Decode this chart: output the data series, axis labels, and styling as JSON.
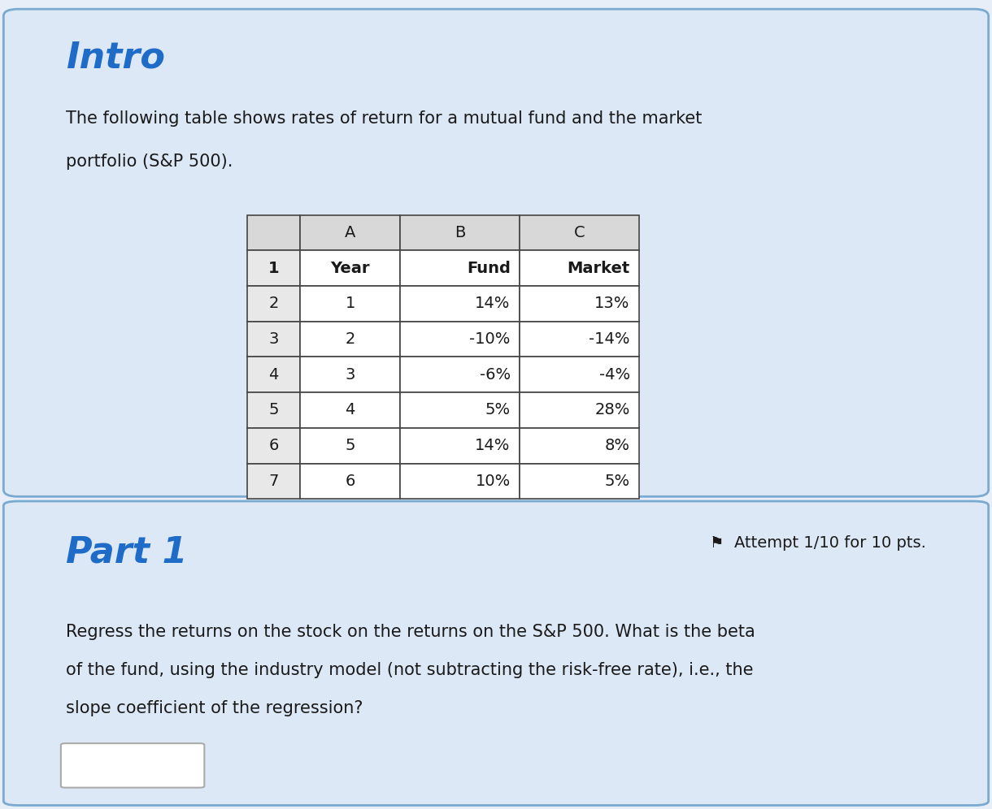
{
  "title": "Intro",
  "title_color": "#1e6cc8",
  "intro_text_line1": "The following table shows rates of return for a mutual fund and the market",
  "intro_text_line2": "portfolio (S&P 500).",
  "table_col_headers": [
    "",
    "A",
    "B",
    "C"
  ],
  "table_row_labels": [
    "1",
    "2",
    "3",
    "4",
    "5",
    "6",
    "7"
  ],
  "table_data": [
    [
      "Year",
      "Fund",
      "Market"
    ],
    [
      "1",
      "14%",
      "13%"
    ],
    [
      "2",
      "-10%",
      "-14%"
    ],
    [
      "3",
      "-6%",
      "-4%"
    ],
    [
      "4",
      "5%",
      "28%"
    ],
    [
      "5",
      "14%",
      "8%"
    ],
    [
      "6",
      "10%",
      "5%"
    ]
  ],
  "part1_title": "Part 1",
  "part1_title_color": "#1e6cc8",
  "attempt_text": "⚑  Attempt 1/10 for 10 pts.",
  "part1_text_line1": "Regress the returns on the stock on the returns on the S&P 500. What is the beta",
  "part1_text_line2": "of the fund, using the industry model (not subtracting the risk-free rate), i.e., the",
  "part1_text_line3": "slope coefficient of the regression?",
  "bg_outer": "#e8eef8",
  "bg_top_panel": "#dce8f5",
  "bg_bottom_panel": "#dce8f5",
  "border_color": "#7aaad0",
  "table_header_bg": "#d8d8d8",
  "table_rownum_bg": "#e8e8e8",
  "table_cell_bg": "#ffffff",
  "table_border_color": "#444444",
  "text_color": "#1a1a1a",
  "font_size_title": 32,
  "font_size_body": 15,
  "font_size_table": 14,
  "font_size_attempt": 14
}
